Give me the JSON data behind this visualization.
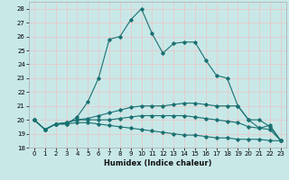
{
  "xlabel": "Humidex (Indice chaleur)",
  "ylabel": "",
  "xlim": [
    -0.5,
    23.5
  ],
  "ylim": [
    18,
    28.5
  ],
  "yticks": [
    18,
    19,
    20,
    21,
    22,
    23,
    24,
    25,
    26,
    27,
    28
  ],
  "xticks": [
    0,
    1,
    2,
    3,
    4,
    5,
    6,
    7,
    8,
    9,
    10,
    11,
    12,
    13,
    14,
    15,
    16,
    17,
    18,
    19,
    20,
    21,
    22,
    23
  ],
  "bg_color": "#c8e8e8",
  "grid_color": "#e8c8c8",
  "line_color": "#1a7070",
  "lines": [
    {
      "x": [
        0,
        1,
        2,
        3,
        4,
        5,
        6,
        7,
        8,
        9,
        10,
        11,
        12,
        13,
        14,
        15,
        16,
        17,
        18,
        19,
        20,
        21,
        22,
        23
      ],
      "y": [
        20,
        19.3,
        19.7,
        19.7,
        19.8,
        19.8,
        19.7,
        19.6,
        19.5,
        19.4,
        19.3,
        19.2,
        19.1,
        19.0,
        18.9,
        18.9,
        18.8,
        18.7,
        18.7,
        18.6,
        18.6,
        18.6,
        18.5,
        18.5
      ]
    },
    {
      "x": [
        0,
        1,
        2,
        3,
        4,
        5,
        6,
        7,
        8,
        9,
        10,
        11,
        12,
        13,
        14,
        15,
        16,
        17,
        18,
        19,
        20,
        21,
        22,
        23
      ],
      "y": [
        20,
        19.3,
        19.7,
        19.8,
        20.0,
        20.0,
        20.0,
        20.0,
        20.1,
        20.2,
        20.3,
        20.3,
        20.3,
        20.3,
        20.3,
        20.2,
        20.1,
        20.0,
        19.9,
        19.8,
        19.5,
        19.4,
        19.3,
        18.5
      ]
    },
    {
      "x": [
        0,
        1,
        2,
        3,
        4,
        5,
        6,
        7,
        8,
        9,
        10,
        11,
        12,
        13,
        14,
        15,
        16,
        17,
        18,
        19,
        20,
        21,
        22,
        23
      ],
      "y": [
        20,
        19.3,
        19.7,
        19.8,
        20.0,
        20.1,
        20.3,
        20.5,
        20.7,
        20.9,
        21.0,
        21.0,
        21.0,
        21.1,
        21.2,
        21.2,
        21.1,
        21.0,
        21.0,
        21.0,
        20.0,
        19.4,
        19.6,
        18.5
      ]
    },
    {
      "x": [
        0,
        1,
        2,
        3,
        4,
        5,
        6,
        7,
        8,
        9,
        10,
        11,
        12,
        13,
        14,
        15,
        16,
        17,
        18,
        19,
        20,
        21,
        22,
        23
      ],
      "y": [
        20,
        19.3,
        19.7,
        19.7,
        20.2,
        21.3,
        23.0,
        25.8,
        26.0,
        27.2,
        28.0,
        26.2,
        24.8,
        25.5,
        25.6,
        25.6,
        24.3,
        23.2,
        23.0,
        21.0,
        20.0,
        20.0,
        19.5,
        18.5
      ]
    }
  ]
}
